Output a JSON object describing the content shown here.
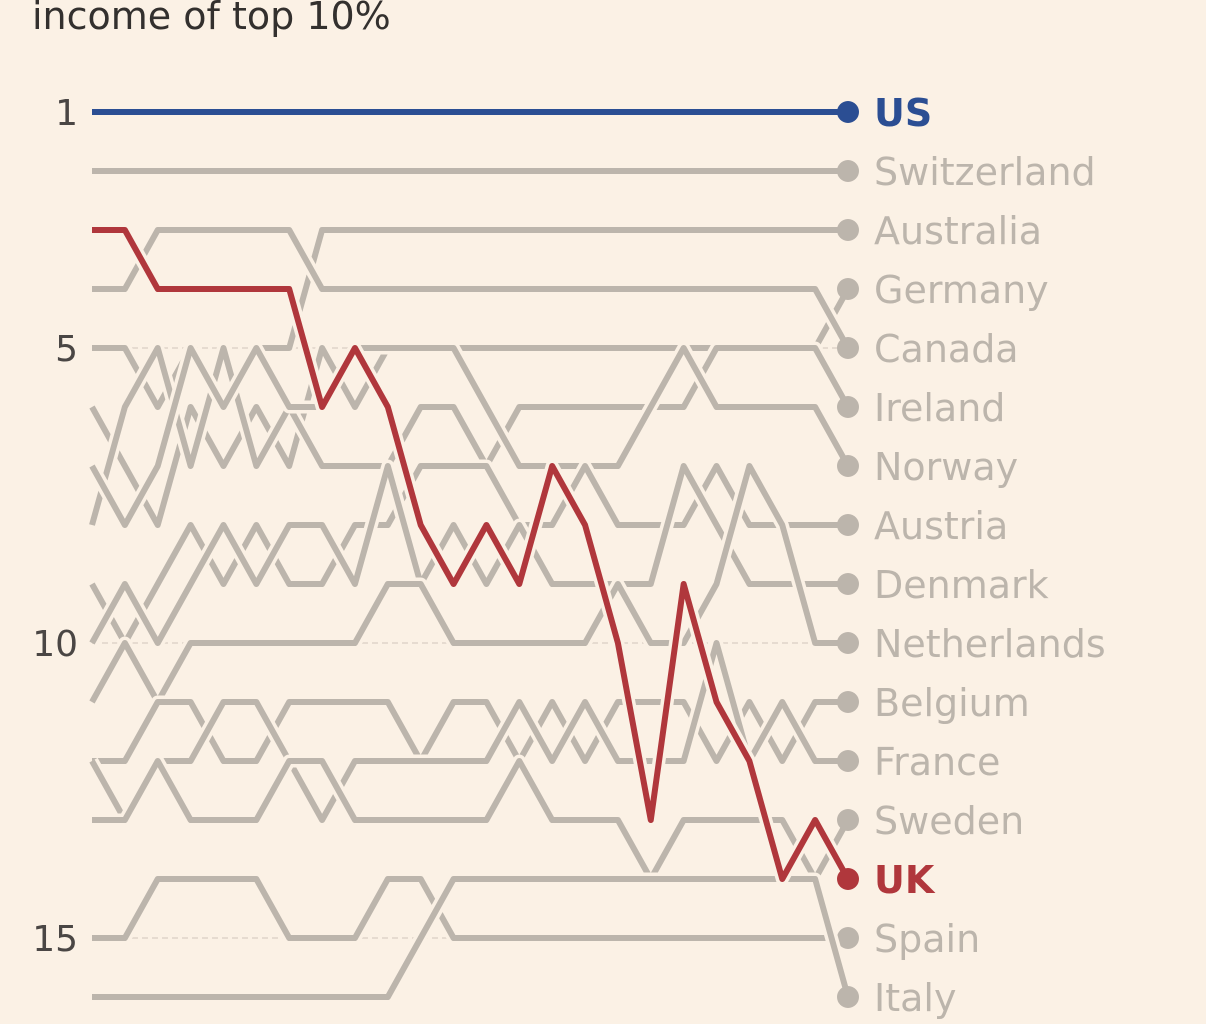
{
  "chart_data": {
    "type": "line",
    "subtitle": "income of top 10%",
    "ylim": [
      1,
      16
    ],
    "y_inverted": true,
    "y_ticks": [
      1,
      5,
      10,
      15
    ],
    "grid": true,
    "colors": {
      "highlight_us": "#2b4e93",
      "highlight_uk": "#b0373c",
      "other": "#bcb5ac",
      "background": "#fbf1e5"
    },
    "series": [
      {
        "name": "US",
        "highlight": true,
        "values": [
          1,
          1,
          1,
          1,
          1,
          1,
          1,
          1,
          1,
          1,
          1,
          1,
          1,
          1,
          1,
          1,
          1,
          1,
          1,
          1,
          1,
          1,
          1,
          1
        ]
      },
      {
        "name": "Switzerland",
        "values": [
          2,
          2,
          2,
          2,
          2,
          2,
          2,
          2,
          2,
          2,
          2,
          2,
          2,
          2,
          2,
          2,
          2,
          2,
          2,
          2,
          2,
          2,
          2,
          2
        ]
      },
      {
        "name": "Australia",
        "values": [
          5,
          5,
          6,
          5,
          6,
          5,
          5,
          3,
          3,
          3,
          3,
          3,
          3,
          3,
          3,
          3,
          3,
          3,
          3,
          3,
          3,
          3,
          3,
          3
        ]
      },
      {
        "name": "Germany",
        "values": [
          6,
          7,
          8,
          6,
          7,
          6,
          7,
          5,
          6,
          5,
          5,
          5,
          5,
          5,
          5,
          5,
          5,
          5,
          5,
          5,
          5,
          5,
          5,
          4
        ]
      },
      {
        "name": "Canada",
        "values": [
          4,
          4,
          3,
          3,
          3,
          3,
          3,
          4,
          4,
          4,
          4,
          4,
          4,
          4,
          4,
          4,
          4,
          4,
          4,
          4,
          4,
          4,
          4,
          5
        ]
      },
      {
        "name": "Ireland",
        "values": [
          8,
          6,
          5,
          7,
          5,
          7,
          6,
          7,
          7,
          7,
          6,
          6,
          7,
          6,
          6,
          6,
          6,
          6,
          6,
          5,
          5,
          5,
          5,
          6
        ]
      },
      {
        "name": "Norway",
        "values": [
          7,
          8,
          7,
          5,
          6,
          5,
          6,
          6,
          5,
          5,
          5,
          5,
          6,
          7,
          7,
          7,
          7,
          6,
          5,
          6,
          6,
          6,
          6,
          7
        ]
      },
      {
        "name": "Austria",
        "values": [
          9,
          10,
          9,
          8,
          9,
          8,
          9,
          9,
          8,
          8,
          7,
          7,
          7,
          8,
          8,
          7,
          8,
          8,
          8,
          7,
          8,
          8,
          8,
          8
        ]
      },
      {
        "name": "Denmark",
        "values": [
          10,
          9,
          10,
          9,
          8,
          9,
          8,
          8,
          9,
          7,
          9,
          8,
          9,
          8,
          9,
          9,
          9,
          9,
          7,
          8,
          9,
          9,
          9,
          9
        ]
      },
      {
        "name": "Netherlands",
        "values": [
          11,
          10,
          11,
          10,
          10,
          10,
          10,
          10,
          10,
          9,
          9,
          10,
          10,
          10,
          10,
          10,
          9,
          10,
          10,
          9,
          7,
          8,
          10,
          10
        ]
      },
      {
        "name": "Belgium",
        "values": [
          12,
          12,
          11,
          11,
          12,
          12,
          11,
          11,
          11,
          11,
          12,
          11,
          11,
          12,
          11,
          12,
          11,
          11,
          11,
          12,
          11,
          12,
          11,
          11
        ]
      },
      {
        "name": "France",
        "values": [
          12,
          13,
          12,
          12,
          11,
          11,
          12,
          13,
          12,
          12,
          12,
          12,
          12,
          11,
          12,
          11,
          12,
          12,
          12,
          10,
          12,
          11,
          12,
          12
        ]
      },
      {
        "name": "Sweden",
        "values": [
          13,
          13,
          12,
          13,
          13,
          13,
          12,
          12,
          13,
          13,
          13,
          13,
          13,
          12,
          13,
          13,
          13,
          14,
          13,
          13,
          13,
          13,
          14,
          13
        ]
      },
      {
        "name": "UK",
        "highlight": true,
        "values": [
          3,
          3,
          4,
          4,
          4,
          4,
          4,
          6,
          5,
          6,
          8,
          9,
          8,
          9,
          7,
          8,
          10,
          13,
          9,
          11,
          12,
          14,
          13,
          14
        ]
      },
      {
        "name": "Spain",
        "values": [
          15,
          15,
          14,
          14,
          14,
          14,
          15,
          15,
          15,
          14,
          14,
          15,
          15,
          15,
          15,
          15,
          15,
          15,
          15,
          15,
          15,
          15,
          15,
          15
        ]
      },
      {
        "name": "Italy",
        "values": [
          16,
          16,
          16,
          16,
          16,
          16,
          16,
          16,
          16,
          16,
          15,
          14,
          14,
          14,
          14,
          14,
          14,
          14,
          14,
          14,
          14,
          14,
          14,
          16
        ]
      }
    ]
  }
}
